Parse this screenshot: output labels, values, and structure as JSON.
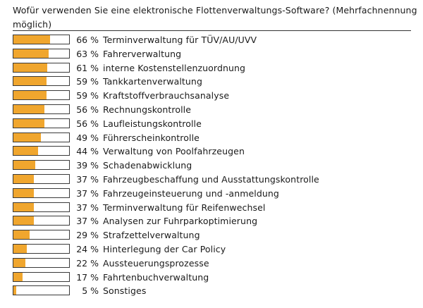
{
  "title": "Wofür verwenden Sie eine elektronische Flottenverwaltungs-Software? (Mehrfachnennung möglich)",
  "colors": {
    "bar": "#f0a62e",
    "frame": "#3a3a3a"
  },
  "chart_data": {
    "type": "bar",
    "orientation": "horizontal",
    "title": "Wofür verwenden Sie eine elektronische Flottenverwaltungs-Software? (Mehrfachnennung möglich)",
    "unit": "%",
    "xlim": [
      0,
      100
    ],
    "grid": false,
    "legend": "none",
    "categories": [
      "Terminverwaltung für TÜV/AU/UVV",
      "Fahrerverwaltung",
      "interne Kostenstellenzuordnung",
      "Tankkartenverwaltung",
      "Kraftstoffverbrauchsanalyse",
      "Rechnungskontrolle",
      "Laufleistungskontrolle",
      "Führerscheinkontrolle",
      "Verwaltung von Poolfahrzeugen",
      "Schadenabwicklung",
      "Fahrzeugbeschaffung und Ausstattungskontrolle",
      "Fahrzeugeinsteuerung und -anmeldung",
      "Terminverwaltung für Reifenwechsel",
      "Analysen zur Fuhrparkoptimierung",
      "Strafzettelverwaltung",
      "Hinterlegung der Car Policy",
      "Aussteuerungsprozesse",
      "Fahrtenbuchverwaltung",
      "Sonstiges"
    ],
    "values": [
      66,
      63,
      61,
      59,
      59,
      56,
      56,
      49,
      44,
      39,
      37,
      37,
      37,
      37,
      29,
      24,
      22,
      17,
      5
    ],
    "value_labels": [
      "66 %",
      "63 %",
      "61 %",
      "59 %",
      "59 %",
      "56 %",
      "56 %",
      "49 %",
      "44 %",
      "39 %",
      "37 %",
      "37 %",
      "37 %",
      "37 %",
      "29 %",
      "24 %",
      "22 %",
      "17 %",
      "5 %"
    ]
  }
}
